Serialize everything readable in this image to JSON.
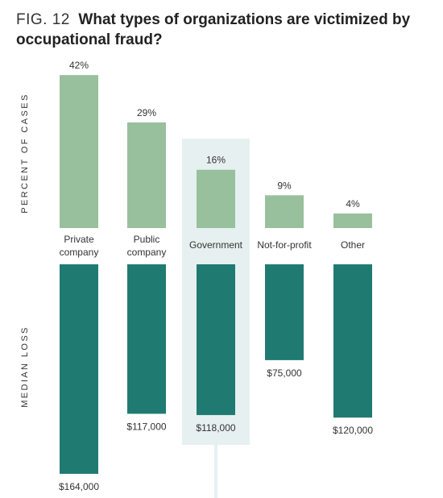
{
  "title": {
    "fig": "FIG. 12",
    "text": "What types of organizations are victimized by occupational fraud?"
  },
  "colors": {
    "top_bar": "#98c09c",
    "bottom_bar": "#1f7a72",
    "highlight": "#e6f0f0",
    "text": "#333333"
  },
  "chart_data": [
    {
      "type": "bar",
      "ylabel": "PERCENT OF CASES",
      "categories": [
        [
          "Private",
          "company"
        ],
        [
          "Public",
          "company"
        ],
        [
          "Government"
        ],
        [
          "Not-for-profit"
        ],
        [
          "Other"
        ]
      ],
      "values": [
        42,
        29,
        16,
        9,
        4
      ],
      "value_labels": [
        "42%",
        "29%",
        "16%",
        "9%",
        "4%"
      ],
      "highlighted_category": "Government"
    },
    {
      "type": "bar",
      "ylabel": "MEDIAN LOSS",
      "categories": [
        "Private company",
        "Public company",
        "Government",
        "Not-for-profit",
        "Other"
      ],
      "values": [
        164000,
        117000,
        118000,
        75000,
        120000
      ],
      "value_labels": [
        "$164,000",
        "$117,000",
        "$118,000",
        "$75,000",
        "$120,000"
      ],
      "orientation": "downward"
    }
  ]
}
